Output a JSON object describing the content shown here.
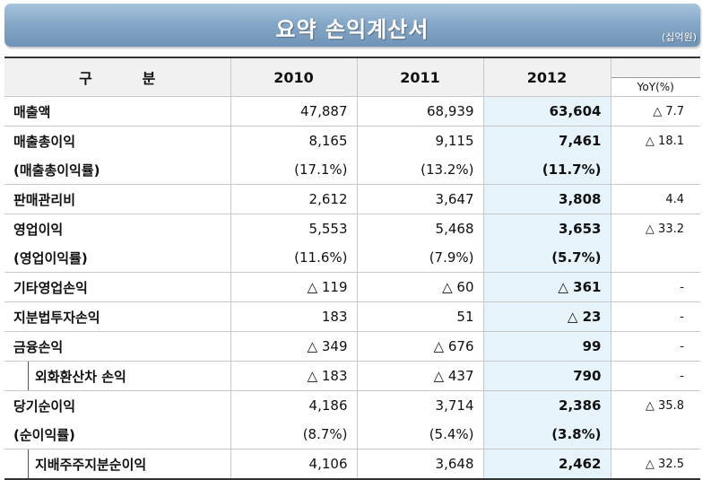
{
  "header": {
    "title": "요약 손익계산서",
    "unit": "(십억원)"
  },
  "columns": [
    "구          분",
    "2010",
    "2011",
    "2012",
    "YoY(%)"
  ],
  "rows": [
    {
      "label": "매출액",
      "v2010": "47,887",
      "v2011": "68,939",
      "v2012": "63,604",
      "yoy": "△ 7.7"
    },
    {
      "label": "매출총이익",
      "v2010": "8,165",
      "v2011": "9,115",
      "v2012": "7,461",
      "yoy": "△ 18.1"
    },
    {
      "label": "(매출총이익률)",
      "v2010": "(17.1%)",
      "v2011": "(13.2%)",
      "v2012": "(11.7%)",
      "yoy": ""
    },
    {
      "label": "판매관리비",
      "v2010": "2,612",
      "v2011": "3,647",
      "v2012": "3,808",
      "yoy": "4.4"
    },
    {
      "label": "영업이익",
      "v2010": "5,553",
      "v2011": "5,468",
      "v2012": "3,653",
      "yoy": "△ 33.2"
    },
    {
      "label": "(영업이익률)",
      "v2010": "(11.6%)",
      "v2011": "(7.9%)",
      "v2012": "(5.7%)",
      "yoy": ""
    },
    {
      "label": "기타영업손익",
      "v2010": "△ 119",
      "v2011": "△ 60",
      "v2012": "△ 361",
      "yoy": "-"
    },
    {
      "label": "지분법투자손익",
      "v2010": "183",
      "v2011": "51",
      "v2012": "△ 23",
      "yoy": "-"
    },
    {
      "label": "금융손익",
      "v2010": "△ 349",
      "v2011": "△ 676",
      "v2012": "99",
      "yoy": "-"
    },
    {
      "label": "외화환산차 손익",
      "v2010": "△ 183",
      "v2011": "△ 437",
      "v2012": "790",
      "yoy": "-"
    },
    {
      "label": "당기순이익",
      "v2010": "4,186",
      "v2011": "3,714",
      "v2012": "2,386",
      "yoy": "△ 35.8"
    },
    {
      "label": "(순이익률)",
      "v2010": "(8.7%)",
      "v2011": "(5.4%)",
      "v2012": "(3.8%)",
      "yoy": ""
    },
    {
      "label": "지배주주지분순이익",
      "v2010": "4,106",
      "v2011": "3,648",
      "v2012": "2,462",
      "yoy": "△ 32.5"
    }
  ]
}
